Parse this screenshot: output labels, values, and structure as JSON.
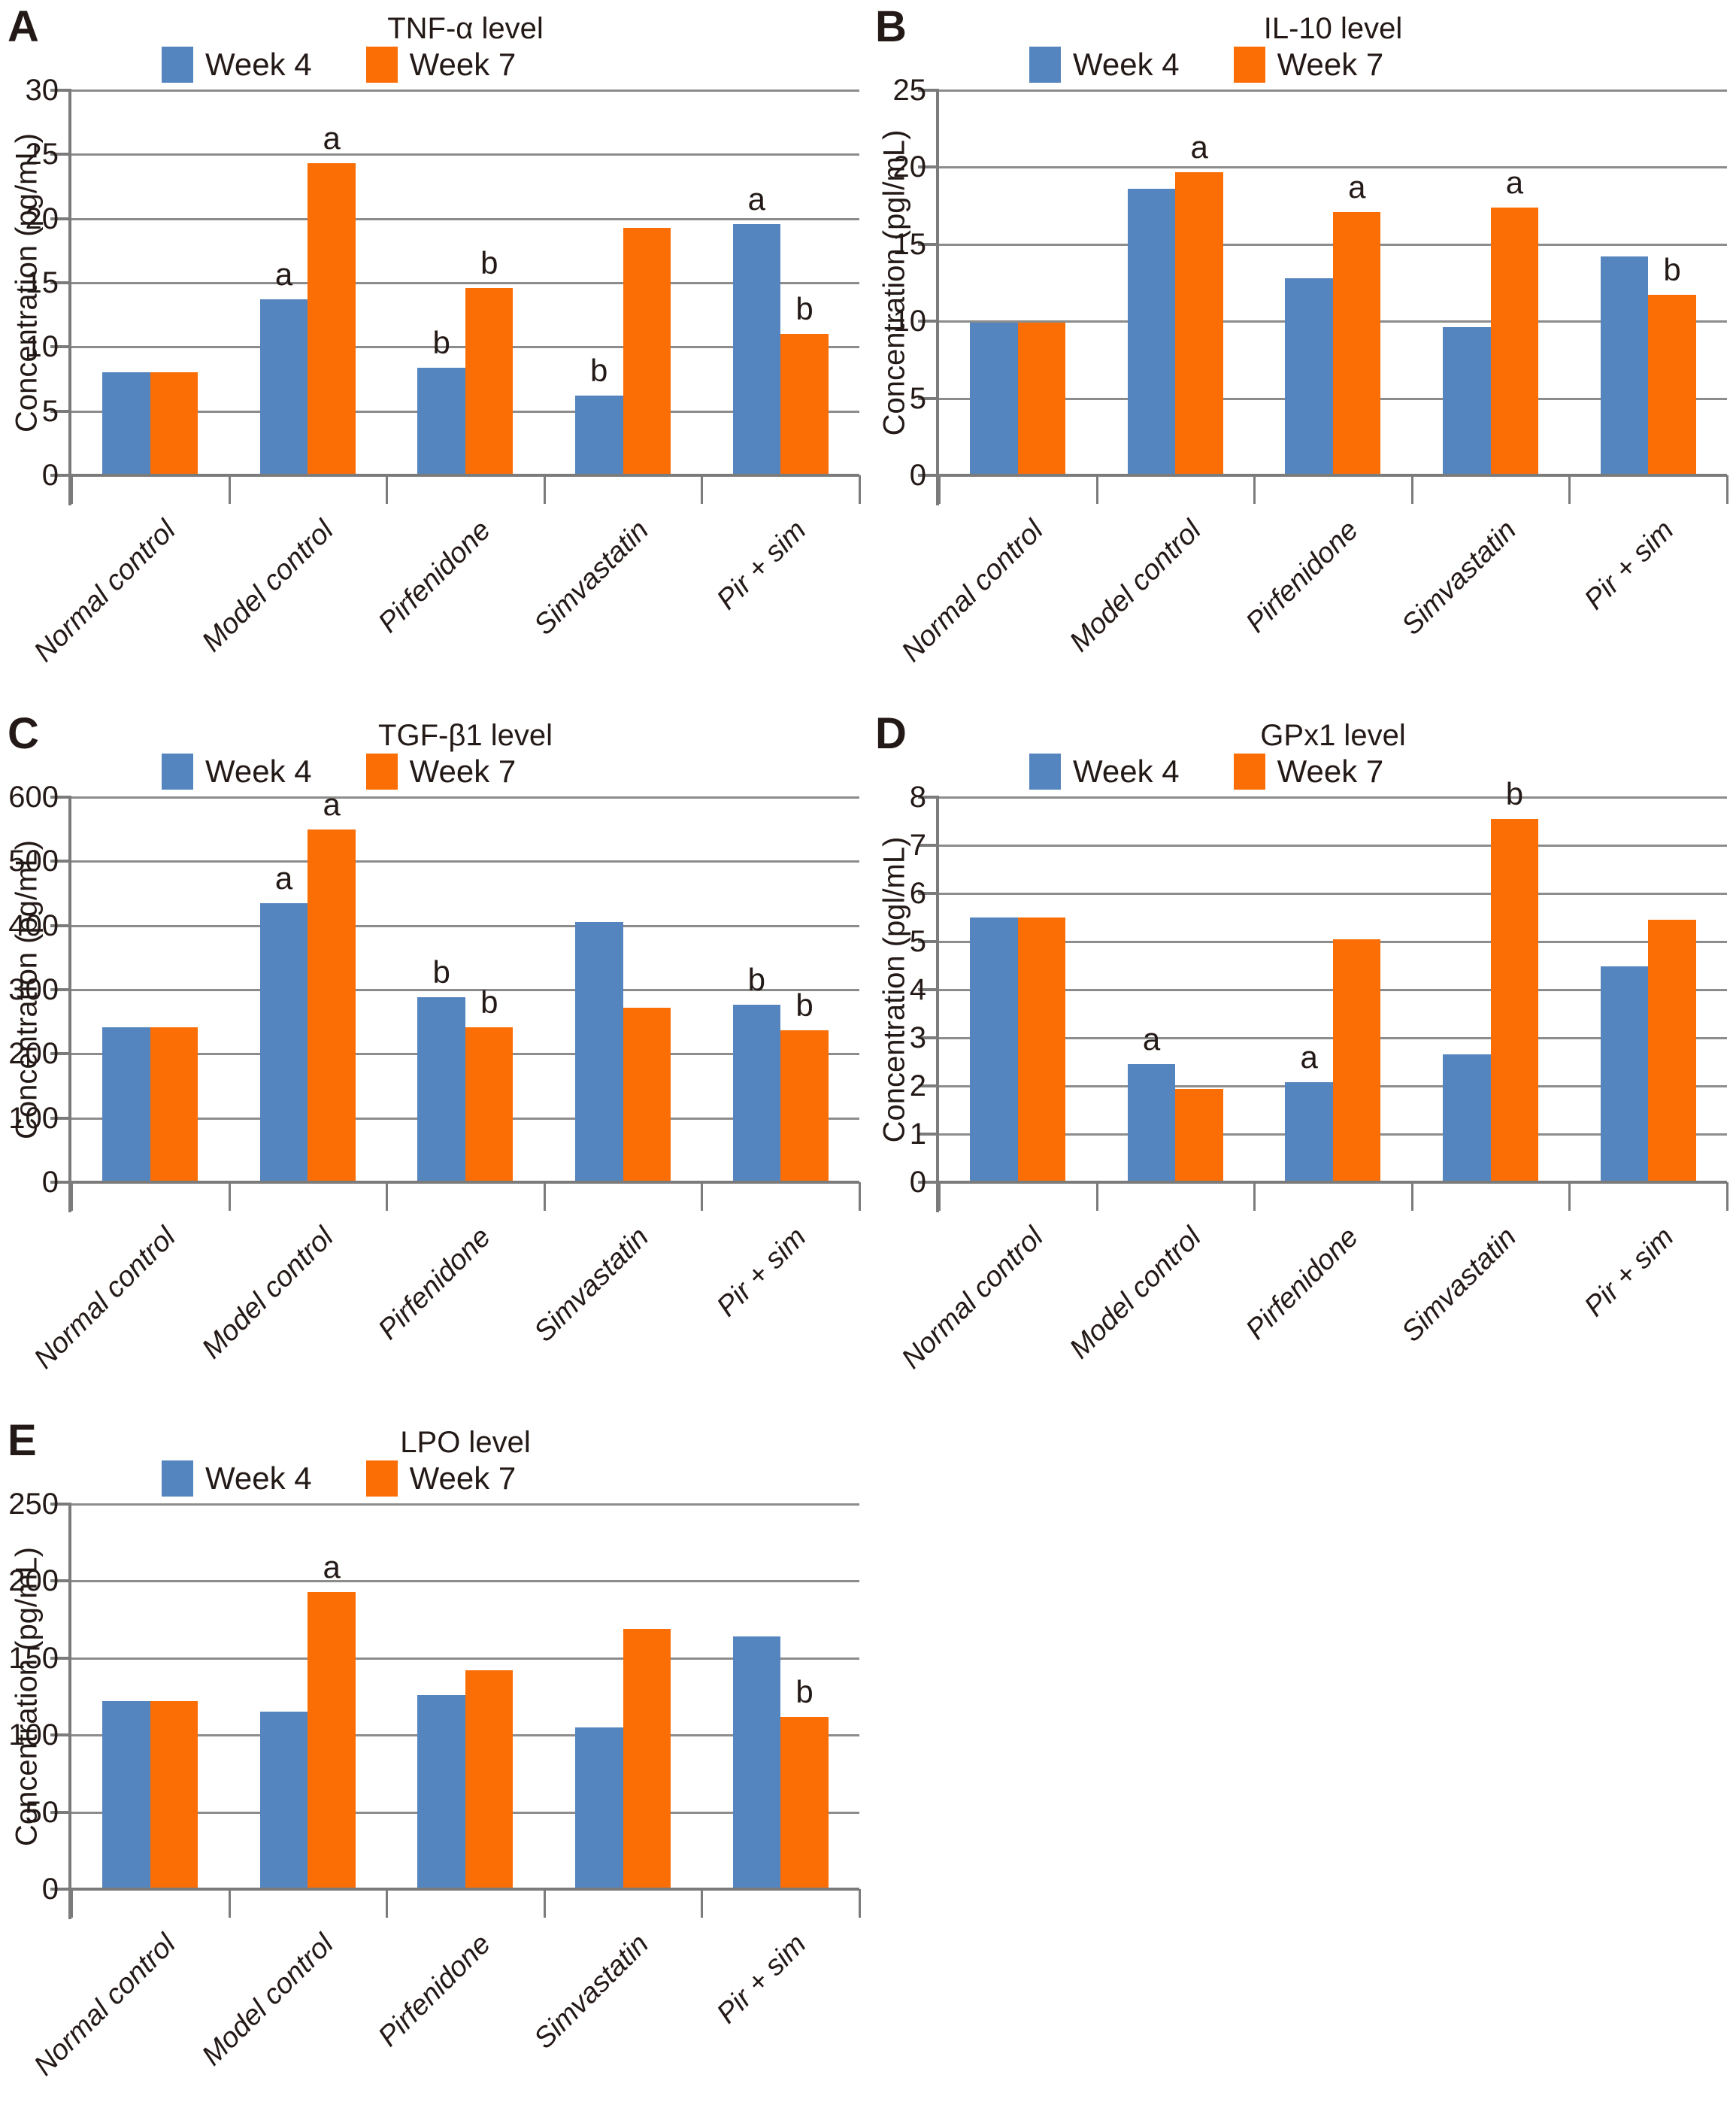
{
  "chart_data": [
    {
      "type": "bar",
      "panel": "A",
      "title": "TNF-α level",
      "ylabel": "Concentration (pg/mL)",
      "ylim": [
        0,
        30
      ],
      "ytick_step": 5,
      "grid": true,
      "legend_position": "top",
      "categories": [
        "Normal control",
        "Model control",
        "Pirfenidone",
        "Simvastatin",
        "Pir + sim"
      ],
      "series": [
        {
          "name": "Week 4",
          "color": "#5585BE",
          "values": [
            8.0,
            13.7,
            8.4,
            6.2,
            19.6
          ],
          "annotations": [
            null,
            "a",
            "b",
            "b",
            "a"
          ]
        },
        {
          "name": "Week 7",
          "color": "#FB6E06",
          "values": [
            8.0,
            24.3,
            14.6,
            19.3,
            11.0
          ],
          "annotations": [
            null,
            "a",
            "b",
            null,
            "b"
          ]
        }
      ]
    },
    {
      "type": "bar",
      "panel": "B",
      "title": "IL-10 level",
      "ylabel": "Concentration (pgl/mL)",
      "ylim": [
        0,
        25
      ],
      "ytick_step": 5,
      "grid": true,
      "legend_position": "top",
      "categories": [
        "Normal control",
        "Model control",
        "Pirfenidone",
        "Simvastatin",
        "Pir + sim"
      ],
      "series": [
        {
          "name": "Week 4",
          "color": "#5585BE",
          "values": [
            9.9,
            18.6,
            12.8,
            9.6,
            14.2
          ],
          "annotations": [
            null,
            null,
            null,
            null,
            null
          ]
        },
        {
          "name": "Week 7",
          "color": "#FB6E06",
          "values": [
            9.9,
            19.7,
            17.1,
            17.4,
            11.7
          ],
          "annotations": [
            null,
            "a",
            "a",
            "a",
            "b"
          ]
        }
      ]
    },
    {
      "type": "bar",
      "panel": "C",
      "title": "TGF-β1 level",
      "ylabel": "Concentration (pg/mL)",
      "ylim": [
        0,
        600
      ],
      "ytick_step": 100,
      "grid": true,
      "legend_position": "top",
      "categories": [
        "Normal control",
        "Model control",
        "Pirfenidone",
        "Simvastatin",
        "Pir + sim"
      ],
      "series": [
        {
          "name": "Week 4",
          "color": "#5585BE",
          "values": [
            241,
            435,
            288,
            405,
            277
          ],
          "annotations": [
            null,
            "a",
            "b",
            null,
            "b"
          ]
        },
        {
          "name": "Week 7",
          "color": "#FB6E06",
          "values": [
            241,
            550,
            241,
            272,
            237
          ],
          "annotations": [
            null,
            "a",
            "b",
            null,
            "b"
          ]
        }
      ]
    },
    {
      "type": "bar",
      "panel": "D",
      "title": "GPx1 level",
      "ylabel": "Concentration (pgl/mL)",
      "ylim": [
        0,
        8
      ],
      "ytick_step": 1,
      "grid": true,
      "legend_position": "top",
      "categories": [
        "Normal control",
        "Model control",
        "Pirfenidone",
        "Simvastatin",
        "Pir + sim"
      ],
      "series": [
        {
          "name": "Week 4",
          "color": "#5585BE",
          "values": [
            5.5,
            2.45,
            2.08,
            2.65,
            4.48
          ],
          "annotations": [
            null,
            "a",
            "a",
            null,
            null
          ]
        },
        {
          "name": "Week 7",
          "color": "#FB6E06",
          "values": [
            5.5,
            1.93,
            5.05,
            7.55,
            5.45
          ],
          "annotations": [
            null,
            null,
            null,
            "b",
            null
          ]
        }
      ]
    },
    {
      "type": "bar",
      "panel": "E",
      "title": "LPO level",
      "ylabel": "Concentration (pg/mL)",
      "ylim": [
        0,
        250
      ],
      "ytick_step": 50,
      "grid": true,
      "legend_position": "top",
      "categories": [
        "Normal control",
        "Model control",
        "Pirfenidone",
        "Simvastatin",
        "Pir + sim"
      ],
      "series": [
        {
          "name": "Week 4",
          "color": "#5585BE",
          "values": [
            122,
            115,
            126,
            105,
            164
          ],
          "annotations": [
            null,
            null,
            null,
            null,
            null
          ]
        },
        {
          "name": "Week 7",
          "color": "#FB6E06",
          "values": [
            122,
            193,
            142,
            169,
            112
          ],
          "annotations": [
            null,
            "a",
            null,
            null,
            "b"
          ]
        }
      ]
    }
  ]
}
